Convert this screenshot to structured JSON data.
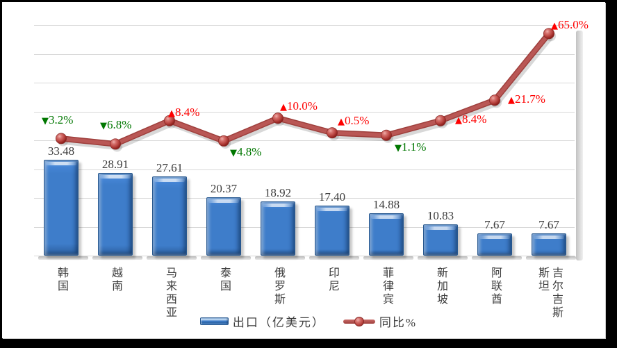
{
  "chart_data": {
    "type": "bar",
    "title": "",
    "categories": [
      "韩国",
      "越南",
      "马来西亚",
      "泰国",
      "俄罗斯",
      "印尼",
      "菲律宾",
      "新加坡",
      "阿联酋",
      "吉尔吉斯斯坦"
    ],
    "series": [
      {
        "name": "出口（亿美元）",
        "type": "bar",
        "values": [
          33.48,
          28.91,
          27.61,
          20.37,
          18.92,
          17.4,
          14.88,
          10.83,
          7.67,
          7.67
        ],
        "value_labels": [
          "33.48",
          "28.91",
          "27.61",
          "20.37",
          "18.92",
          "17.40",
          "14.88",
          "10.83",
          "7.67",
          "7.67"
        ]
      },
      {
        "name": "同比%",
        "type": "line",
        "values": [
          -3.2,
          -6.8,
          8.4,
          -4.8,
          10.0,
          0.5,
          -1.1,
          8.4,
          21.7,
          65.0
        ],
        "point_labels": [
          {
            "arrow": "▼",
            "text": "3.2%",
            "dir": "down"
          },
          {
            "arrow": "▼",
            "text": "6.8%",
            "dir": "down"
          },
          {
            "arrow": "▲",
            "text": "8.4%",
            "dir": "up"
          },
          {
            "arrow": "▼",
            "text": "4.8%",
            "dir": "down"
          },
          {
            "arrow": "▲",
            "text": "10.0%",
            "dir": "up"
          },
          {
            "arrow": "▲",
            "text": "0.5%",
            "dir": "up"
          },
          {
            "arrow": "▼",
            "text": "1.1%",
            "dir": "down"
          },
          {
            "arrow": "▲",
            "text": "8.4%",
            "dir": "up"
          },
          {
            "arrow": "▲",
            "text": "21.7%",
            "dir": "up"
          },
          {
            "arrow": "▲",
            "text": "65.0%",
            "dir": "up"
          }
        ]
      }
    ],
    "primary_ylim": [
      0,
      80
    ],
    "secondary_ylim": [
      -80,
      70
    ],
    "grid": true,
    "legend_position": "bottom",
    "xlabel": "",
    "ylabel": ""
  },
  "legend": {
    "bar_label": "出口（亿美元）",
    "line_label": "同比%"
  },
  "colors": {
    "bar": "#3e7dca",
    "bar_edge": "#27588f",
    "line": "#b45050",
    "marker": "#bc4844",
    "pct_up": "#fe0000",
    "pct_down": "#007700",
    "value_label": "#3d3d3d",
    "gridline": "#d8d8d8",
    "panel_background": "#ffffff",
    "frame_background": "#000000"
  }
}
